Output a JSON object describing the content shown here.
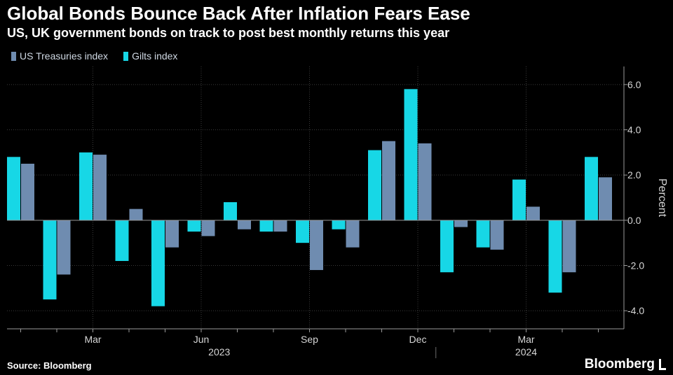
{
  "title": "Global Bonds Bounce Back After Inflation Fears Ease",
  "subtitle": "US, UK government bonds on track to post best monthly returns this year",
  "source": "Source: Bloomberg",
  "brand": "Bloomberg",
  "colors": {
    "us": "#6f8cb0",
    "gilts": "#17d7e6",
    "grid": "#3a3a3a",
    "background": "#000000"
  },
  "chart_data": {
    "type": "bar",
    "ylabel": "Percent",
    "ylim": [
      -4.8,
      6.8
    ],
    "yticks": [
      6,
      4,
      2,
      0,
      -2,
      -4
    ],
    "ytick_labels": [
      "6.0",
      "4.0",
      "2.0",
      "0.0",
      "-2.0",
      "-4.0"
    ],
    "grid": true,
    "legend_position": "top-left",
    "months": [
      "2023-01",
      "2023-02",
      "2023-03",
      "2023-04",
      "2023-05",
      "2023-06",
      "2023-07",
      "2023-08",
      "2023-09",
      "2023-10",
      "2023-11",
      "2023-12",
      "2024-01",
      "2024-02",
      "2024-03",
      "2024-04",
      "2024-05"
    ],
    "x_tick_labels": [
      {
        "month": "2023-03",
        "label": "Mar"
      },
      {
        "month": "2023-06",
        "label": "Jun"
      },
      {
        "month": "2023-09",
        "label": "Sep"
      },
      {
        "month": "2023-12",
        "label": "Dec"
      },
      {
        "month": "2024-03",
        "label": "Mar"
      }
    ],
    "year_labels": [
      {
        "label": "2023",
        "months": [
          "2023-01",
          "2023-12"
        ]
      },
      {
        "label": "2024",
        "months": [
          "2024-01",
          "2024-05"
        ]
      }
    ],
    "series": [
      {
        "name": "US Treasuries index",
        "color": "#6f8cb0",
        "values": [
          2.5,
          -2.4,
          2.9,
          0.5,
          -1.2,
          -0.7,
          -0.4,
          -0.5,
          -2.2,
          -1.2,
          3.5,
          3.4,
          -0.3,
          -1.3,
          0.6,
          -2.3,
          1.9
        ]
      },
      {
        "name": "Gilts index",
        "color": "#17d7e6",
        "values": [
          2.8,
          -3.5,
          3.0,
          -1.8,
          -3.8,
          -0.5,
          0.8,
          -0.5,
          -1.0,
          -0.4,
          3.1,
          5.8,
          -2.3,
          -1.2,
          1.8,
          -3.2,
          2.8
        ]
      }
    ]
  }
}
